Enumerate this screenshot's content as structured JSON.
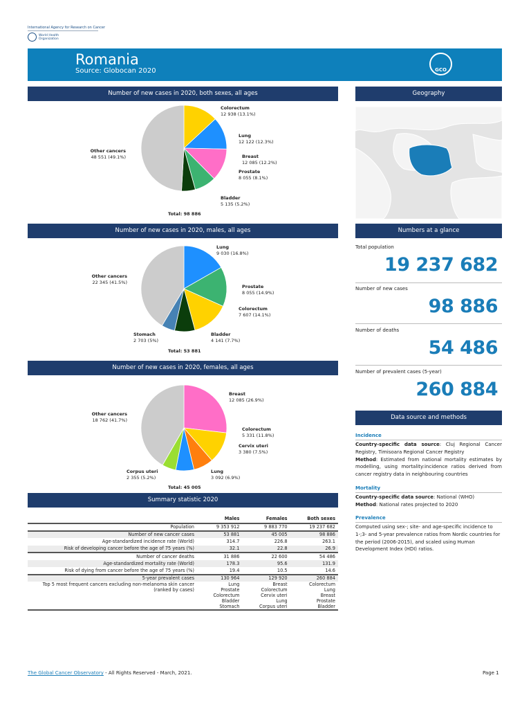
{
  "branding": {
    "iarc": "International Agency for Research on Cancer",
    "who": "World Health Organization",
    "gco": "GCO"
  },
  "header": {
    "title": "Romania",
    "source": "Source: Globocan 2020"
  },
  "colors": {
    "header": "#0e80bb",
    "bar": "#1f3d6d",
    "accent": "#1a7db8"
  },
  "chart_data": [
    {
      "type": "pie",
      "title": "Number of new cases in 2020, both sexes, all ages",
      "total": "Total: 98 886",
      "slices": [
        {
          "name": "Colorectum",
          "value": 12938,
          "label": "12 938 (13.1%)",
          "color": "#ffd200"
        },
        {
          "name": "Lung",
          "value": 12122,
          "label": "12 122 (12.3%)",
          "color": "#1e90ff"
        },
        {
          "name": "Breast",
          "value": 12085,
          "label": "12 085 (12.2%)",
          "color": "#ff6ec7"
        },
        {
          "name": "Prostate",
          "value": 8055,
          "label": "8 055 (8.1%)",
          "color": "#3cb371"
        },
        {
          "name": "Bladder",
          "value": 5135,
          "label": "5 135 (5.2%)",
          "color": "#0b3d0b"
        },
        {
          "name": "Other cancers",
          "value": 48551,
          "label": "48 551 (49.1%)",
          "color": "#cccccc"
        }
      ]
    },
    {
      "type": "pie",
      "title": "Number of new cases in 2020, males, all ages",
      "total": "Total: 53 881",
      "slices": [
        {
          "name": "Lung",
          "value": 9030,
          "label": "9 030 (16.8%)",
          "color": "#1e90ff"
        },
        {
          "name": "Prostate",
          "value": 8055,
          "label": "8 055 (14.9%)",
          "color": "#3cb371"
        },
        {
          "name": "Colorectum",
          "value": 7607,
          "label": "7 607 (14.1%)",
          "color": "#ffd200"
        },
        {
          "name": "Bladder",
          "value": 4141,
          "label": "4 141 (7.7%)",
          "color": "#0b3d0b"
        },
        {
          "name": "Stomach",
          "value": 2703,
          "label": "2 703 (5%)",
          "color": "#4682b4"
        },
        {
          "name": "Other cancers",
          "value": 22345,
          "label": "22 345 (41.5%)",
          "color": "#cccccc"
        }
      ]
    },
    {
      "type": "pie",
      "title": "Number of new cases in 2020, females, all ages",
      "total": "Total: 45 005",
      "slices": [
        {
          "name": "Breast",
          "value": 12085,
          "label": "12 085 (26.9%)",
          "color": "#ff6ec7"
        },
        {
          "name": "Colorectum",
          "value": 5331,
          "label": "5 331 (11.8%)",
          "color": "#ffd200"
        },
        {
          "name": "Cervix uteri",
          "value": 3380,
          "label": "3 380 (7.5%)",
          "color": "#ff7f0e"
        },
        {
          "name": "Lung",
          "value": 3092,
          "label": "3 092 (6.9%)",
          "color": "#1e90ff"
        },
        {
          "name": "Corpus uteri",
          "value": 2355,
          "label": "2 355 (5.2%)",
          "color": "#9ade32"
        },
        {
          "name": "Other cancers",
          "value": 18762,
          "label": "18 762 (41.7%)",
          "color": "#cccccc"
        }
      ]
    }
  ],
  "geography": {
    "title": "Geography"
  },
  "glance": {
    "title": "Numbers at a glance",
    "items": [
      {
        "label": "Total population",
        "value": "19 237 682"
      },
      {
        "label": "Number of new cases",
        "value": "98 886"
      },
      {
        "label": "Number of deaths",
        "value": "54 486"
      },
      {
        "label": "Number of prevalent cases (5-year)",
        "value": "260 884"
      }
    ]
  },
  "datasource": {
    "title": "Data source and methods",
    "incidence": {
      "h": "Incidence",
      "k1": "Country-specific data source",
      "v1": ": Cluj Regional Cancer Registry, Timisoara Regional Cancer Registry",
      "k2": "Method",
      "v2": ": Estimated from national mortality estimates by modelling, using mortality:incidence ratios derived from cancer registry data in neighbouring countries"
    },
    "mortality": {
      "h": "Mortality",
      "k1": "Country-specific data source",
      "v1": ": National (WHO)",
      "k2": "Method",
      "v2": ": National rates projected to 2020"
    },
    "prevalence": {
      "h": "Prevalence",
      "text": "Computed using sex-; site- and age-specific incidence to 1-;3- and 5-year prevalence ratios from Nordic countries for the period (2006-2015), and scaled using Human Development Index (HDI) ratios."
    }
  },
  "summary": {
    "title": "Summary statistic 2020",
    "columns": [
      "Males",
      "Females",
      "Both sexes"
    ],
    "rows": [
      [
        "Population",
        "9 353 912",
        "9 883 770",
        "19 237 682"
      ],
      [
        "Number of new cancer cases",
        "53 881",
        "45 005",
        "98 886"
      ],
      [
        "Age-standardized incidence rate (World)",
        "314.7",
        "226.8",
        "263.1"
      ],
      [
        "Risk of developing cancer before the age of 75 years (%)",
        "32.1",
        "22.8",
        "26.9"
      ],
      [
        "Number of cancer deaths",
        "31 886",
        "22 600",
        "54 486"
      ],
      [
        "Age-standardized mortality rate (World)",
        "178.3",
        "95.6",
        "131.9"
      ],
      [
        "Risk of dying from cancer before the age of 75 years (%)",
        "19.4",
        "10.5",
        "14.6"
      ],
      [
        "5-year prevalent cases",
        "130 964",
        "129 920",
        "260 884"
      ]
    ],
    "top5": {
      "label1": "Top 5 most frequent cancers excluding non-melanoma skin cancer",
      "label2": "(ranked by cases)",
      "males": [
        "Lung",
        "Prostate",
        "Colorectum",
        "Bladder",
        "Stomach"
      ],
      "females": [
        "Breast",
        "Colorectum",
        "Cervix uteri",
        "Lung",
        "Corpus uteri"
      ],
      "both": [
        "Colorectum",
        "Lung",
        "Breast",
        "Prostate",
        "Bladder"
      ]
    }
  },
  "footer": {
    "link": "The Global Cancer Observatory",
    "rest": " - All Rights Reserved - March, 2021.",
    "page": "Page 1"
  }
}
